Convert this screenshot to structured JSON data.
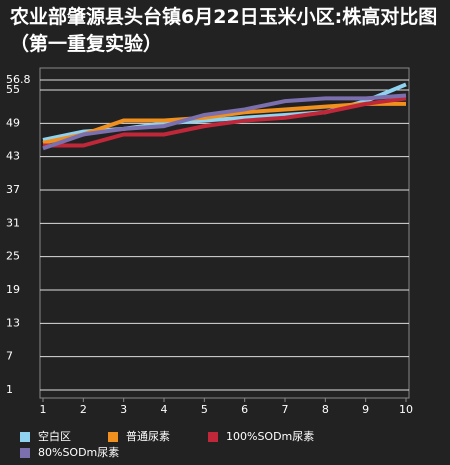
{
  "chart_data": {
    "type": "line",
    "title": "农业部肇源县头台镇6月22日玉米小区:株高对比图（第一重复实验）",
    "x": [
      1,
      2,
      3,
      4,
      5,
      6,
      7,
      8,
      9,
      10
    ],
    "xlim": [
      1,
      10
    ],
    "xticks": [
      1,
      2,
      3,
      4,
      5,
      6,
      7,
      8,
      9,
      10
    ],
    "ylim": [
      1,
      56.8
    ],
    "yticks": [
      1,
      7,
      13,
      19,
      25,
      31,
      37,
      43,
      49,
      55,
      56.8
    ],
    "grid": true,
    "series": [
      {
        "name": "空白区",
        "color": "#8fd3f0",
        "values": [
          46,
          47.5,
          48,
          49,
          49.5,
          50,
          50.5,
          51,
          53,
          56
        ]
      },
      {
        "name": "普通尿素",
        "color": "#f0901e",
        "values": [
          45.5,
          47,
          49.5,
          49.5,
          50,
          51,
          51.5,
          52,
          52.5,
          52.5
        ]
      },
      {
        "name": "100%SODm尿素",
        "color": "#c0283a",
        "values": [
          45,
          45,
          47,
          47,
          48.5,
          49.5,
          50,
          51,
          52.5,
          53.5
        ]
      },
      {
        "name": "80%SODm尿素",
        "color": "#7b6fae",
        "values": [
          44.5,
          47,
          48,
          48.5,
          50.5,
          51.5,
          53,
          53.5,
          53.5,
          54
        ]
      }
    ]
  }
}
